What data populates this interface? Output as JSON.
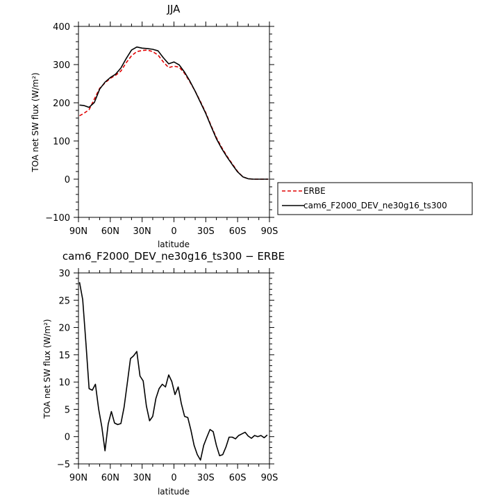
{
  "chart_data": [
    {
      "type": "line",
      "title": "JJA",
      "xlabel": "latitude",
      "ylabel": "TOA net SW flux (W/m²)",
      "xlim": [
        90,
        -90
      ],
      "ylim": [
        -100,
        400
      ],
      "xticks": [
        90,
        60,
        30,
        0,
        -30,
        -60,
        -90
      ],
      "xtick_labels": [
        "90N",
        "60N",
        "30N",
        "0",
        "30S",
        "60S",
        "90S"
      ],
      "yticks": [
        -100,
        0,
        100,
        200,
        300,
        400
      ],
      "ytick_labels": [
        "−100",
        "0",
        "100",
        "200",
        "300",
        "400"
      ],
      "legend_position": "right",
      "series": [
        {
          "name": "ERBE",
          "color": "#e00000",
          "dash": "dashed",
          "x": [
            89,
            85,
            80,
            75,
            70,
            65,
            60,
            55,
            50,
            45,
            40,
            35,
            30,
            25,
            20,
            15,
            10,
            5,
            0,
            -5,
            -10,
            -15,
            -20,
            -25,
            -30,
            -35,
            -40,
            -45,
            -50,
            -55,
            -60,
            -65,
            -70,
            -75,
            -80,
            -85,
            -89
          ],
          "y": [
            166,
            172,
            182,
            210,
            238,
            252,
            264,
            272,
            283,
            305,
            323,
            334,
            337,
            338,
            334,
            325,
            307,
            292,
            296,
            293,
            277,
            255,
            230,
            203,
            174,
            140,
            109,
            83,
            60,
            40,
            20,
            6,
            1,
            0,
            0,
            0,
            0
          ]
        },
        {
          "name": "cam6_F2000_DEV_ne30g16_ts300",
          "color": "#000000",
          "dash": "solid",
          "x": [
            89,
            85,
            80,
            75,
            70,
            65,
            60,
            55,
            50,
            45,
            40,
            35,
            30,
            25,
            20,
            15,
            10,
            5,
            0,
            -5,
            -10,
            -15,
            -20,
            -25,
            -30,
            -35,
            -40,
            -45,
            -50,
            -55,
            -60,
            -65,
            -70,
            -75,
            -80,
            -85,
            -89
          ],
          "y": [
            194,
            193,
            188,
            201,
            236,
            254,
            266,
            275,
            291,
            316,
            338,
            346,
            343,
            342,
            340,
            336,
            318,
            302,
            307,
            299,
            280,
            257,
            230,
            201,
            172,
            138,
            106,
            80,
            58,
            38,
            19,
            6,
            1,
            0,
            0,
            0,
            0
          ]
        }
      ]
    },
    {
      "type": "line",
      "title": "cam6_F2000_DEV_ne30g16_ts300 − ERBE",
      "xlabel": "latitude",
      "ylabel": "TOA net SW flux (W/m²)",
      "xlim": [
        90,
        -90
      ],
      "ylim": [
        -5,
        30
      ],
      "xticks": [
        90,
        60,
        30,
        0,
        -30,
        -60,
        -90
      ],
      "xtick_labels": [
        "90N",
        "60N",
        "30N",
        "0",
        "30S",
        "60S",
        "90S"
      ],
      "yticks": [
        -5,
        0,
        5,
        10,
        15,
        20,
        25,
        30
      ],
      "ytick_labels": [
        "−5",
        "0",
        "5",
        "10",
        "15",
        "20",
        "25",
        "30"
      ],
      "series": [
        {
          "color": "#000000",
          "dash": "solid",
          "x": [
            89,
            86,
            83,
            80,
            77,
            74,
            71,
            68,
            65,
            62,
            59,
            56,
            53,
            50,
            47,
            44,
            41,
            38,
            35,
            32,
            29,
            26,
            23,
            20,
            17,
            14,
            11,
            8,
            5,
            2,
            -1,
            -4,
            -7,
            -10,
            -13,
            -16,
            -19,
            -22,
            -25,
            -28,
            -31,
            -34,
            -37,
            -40,
            -43,
            -46,
            -49,
            -52,
            -55,
            -58,
            -61,
            -64,
            -67,
            -70,
            -73,
            -76,
            -79,
            -82,
            -85,
            -88
          ],
          "y": [
            28.3,
            25.1,
            17.2,
            8.8,
            8.5,
            9.6,
            5.1,
            1.8,
            -2.6,
            2.3,
            4.6,
            2.5,
            2.2,
            2.4,
            5.4,
            9.8,
            14.3,
            14.8,
            15.6,
            11.1,
            10.2,
            5.6,
            2.9,
            3.7,
            7.0,
            8.8,
            9.6,
            9.1,
            11.3,
            10.1,
            7.7,
            9.1,
            6.0,
            3.7,
            3.5,
            1.2,
            -1.6,
            -3.3,
            -4.3,
            -1.6,
            -0.1,
            1.3,
            0.9,
            -1.6,
            -3.5,
            -3.3,
            -1.9,
            -0.1,
            -0.1,
            -0.4,
            0.2,
            0.5,
            0.8,
            0.1,
            -0.3,
            0.2,
            0.0,
            0.2,
            -0.2,
            0.3
          ]
        }
      ]
    }
  ]
}
